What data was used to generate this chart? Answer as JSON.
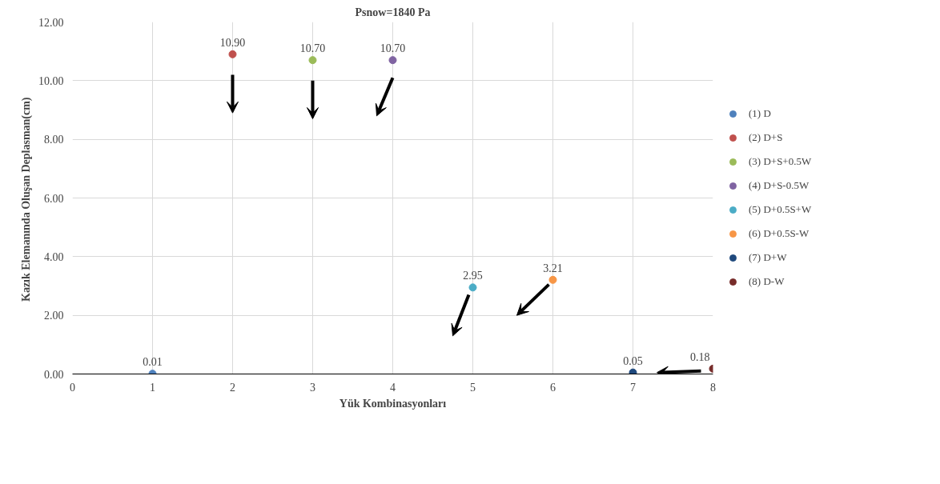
{
  "chart_data": {
    "type": "scatter",
    "title": "Psnow=1840 Pa",
    "xlabel": "Yük Kombinasyonları",
    "ylabel": "Kazık Elemanında  Oluşan Deplasman(cm)",
    "xlim": [
      0,
      8
    ],
    "xticks": [
      0,
      1,
      2,
      3,
      4,
      5,
      6,
      7,
      8
    ],
    "ylim": [
      0,
      12
    ],
    "yticks": [
      {
        "value": 0,
        "label": "0.00"
      },
      {
        "value": 2,
        "label": "2.00"
      },
      {
        "value": 4,
        "label": "4.00"
      },
      {
        "value": 6,
        "label": "6.00"
      },
      {
        "value": 8,
        "label": "8.00"
      },
      {
        "value": 10,
        "label": "10.00"
      },
      {
        "value": 12,
        "label": "12.00"
      }
    ],
    "grid": true,
    "legend": "right",
    "marker": "circle",
    "series": [
      {
        "name": "(1) D",
        "color": "#4f81bd",
        "x": [
          1
        ],
        "values": [
          0.01
        ],
        "value_labels": [
          "0.01"
        ]
      },
      {
        "name": "(2) D+S",
        "color": "#c0504d",
        "x": [
          2
        ],
        "values": [
          10.9
        ],
        "value_labels": [
          "10.90"
        ]
      },
      {
        "name": "(3) D+S+0.5W",
        "color": "#9bbb59",
        "x": [
          3
        ],
        "values": [
          10.7
        ],
        "value_labels": [
          "10.70"
        ]
      },
      {
        "name": "(4) D+S-0.5W",
        "color": "#8064a2",
        "x": [
          4
        ],
        "values": [
          10.7
        ],
        "value_labels": [
          "10.70"
        ]
      },
      {
        "name": "(5) D+0.5S+W",
        "color": "#4bacc6",
        "x": [
          5
        ],
        "values": [
          2.95
        ],
        "value_labels": [
          "2.95"
        ]
      },
      {
        "name": "(6) D+0.5S-W",
        "color": "#f79646",
        "x": [
          6
        ],
        "values": [
          3.21
        ],
        "value_labels": [
          "3.21"
        ]
      },
      {
        "name": "(7) D+W",
        "color": "#1f497d",
        "x": [
          7
        ],
        "values": [
          0.05
        ],
        "value_labels": [
          "0.05"
        ]
      },
      {
        "name": "(8) D-W",
        "color": "#772c2a",
        "x": [
          8
        ],
        "values": [
          0.18
        ],
        "value_labels": [
          "0.18"
        ]
      }
    ]
  }
}
